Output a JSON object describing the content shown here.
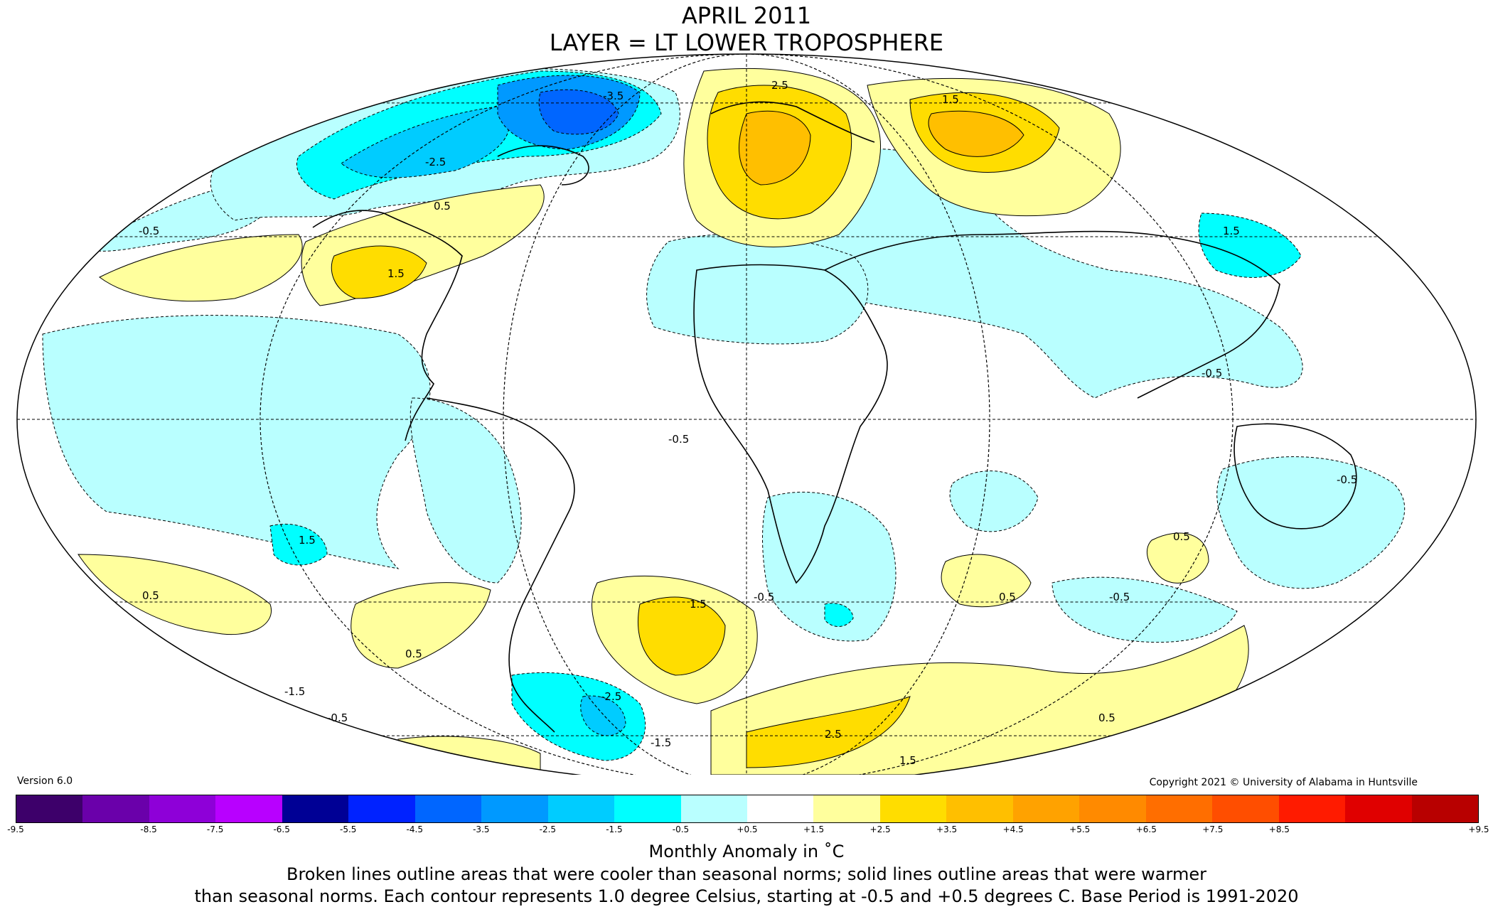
{
  "title_line1": "APRIL 2011",
  "title_line2": "LAYER = LT LOWER TROPOSPHERE",
  "version": "Version 6.0",
  "copyright": "Copyright 2021 © University of Alabama in Huntsville",
  "colorbar": {
    "colors": [
      "#3d006a",
      "#6a00aa",
      "#8e00d8",
      "#b800ff",
      "#000095",
      "#0022ff",
      "#0066ff",
      "#0099ff",
      "#00ccff",
      "#00ffff",
      "#b9ffff",
      "#ffffff",
      "#ffff9d",
      "#ffdd00",
      "#ffbf00",
      "#ffa200",
      "#ff8a00",
      "#ff6e00",
      "#ff4e00",
      "#ff1b00",
      "#e00000",
      "#b80000"
    ],
    "ticks": [
      "-9.5",
      "-8.5",
      "-7.5",
      "-6.5",
      "-5.5",
      "-4.5",
      "-3.5",
      "-2.5",
      "-1.5",
      "-0.5",
      "+0.5",
      "+1.5",
      "+2.5",
      "+3.5",
      "+4.5",
      "+5.5",
      "+6.5",
      "+7.5",
      "+8.5",
      "+9.5"
    ],
    "label": "Monthly Anomaly in ˚C"
  },
  "footnote_line1": "Broken lines outline areas that were cooler than seasonal norms; solid lines outline areas that were warmer",
  "footnote_line2": "than seasonal norms. Each contour represents 1.0 degree Celsius, starting at -0.5 and +0.5 degrees C. Base Period is 1991-2020",
  "map": {
    "regions": [
      {
        "name": "canada-arctic",
        "level": "-1.5"
      },
      {
        "name": "canada-core",
        "level": "-2.5"
      },
      {
        "name": "greenland-core",
        "level": "-3.5"
      },
      {
        "name": "north-pacific",
        "level": "-0.5"
      },
      {
        "name": "europe-warm",
        "level": "+1.5"
      },
      {
        "name": "europe-core",
        "level": "+2.5"
      },
      {
        "name": "siberia-warm",
        "level": "+1.5"
      },
      {
        "name": "siberia-core",
        "level": "+2.5"
      },
      {
        "name": "us-east",
        "level": "+0.5"
      },
      {
        "name": "us-core",
        "level": "+1.5"
      },
      {
        "name": "south-atlantic-warm",
        "level": "+1.5"
      },
      {
        "name": "antarctic-peninsula",
        "level": "-1.5"
      },
      {
        "name": "antarctica-warm",
        "level": "+1.5"
      }
    ],
    "contour_labels": [
      "-0.5",
      "-1.5",
      "-2.5",
      "-3.5",
      "0.5",
      "1.5",
      "2.5"
    ]
  }
}
